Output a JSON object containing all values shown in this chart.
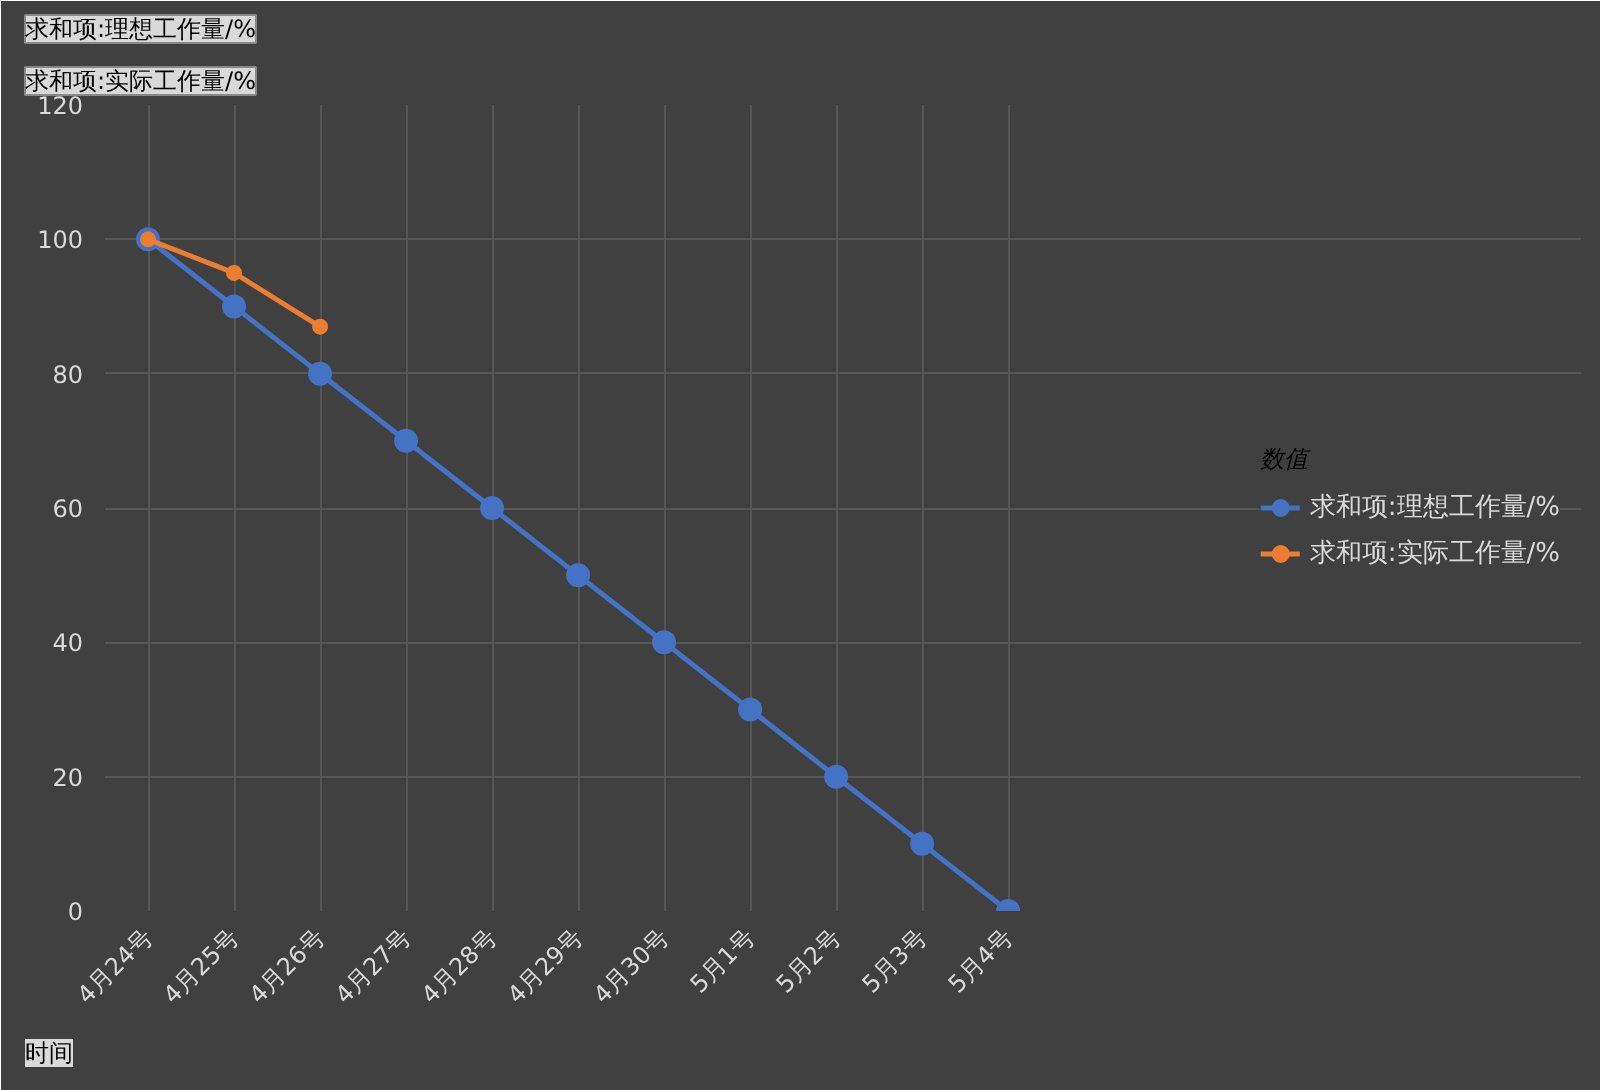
{
  "chart_data": {
    "type": "line",
    "categories": [
      "4月24号",
      "4月25号",
      "4月26号",
      "4月27号",
      "4月28号",
      "4月29号",
      "4月30号",
      "5月1号",
      "5月2号",
      "5月3号",
      "5月4号"
    ],
    "series": [
      {
        "name": "求和项:理想工作量/%",
        "color": "#4472c4",
        "values": [
          100,
          90,
          80,
          70,
          60,
          50,
          40,
          30,
          20,
          10,
          0
        ]
      },
      {
        "name": "求和项:实际工作量/%",
        "color": "#ed7d31",
        "values": [
          100,
          95,
          87,
          null,
          null,
          null,
          null,
          null,
          null,
          null,
          null
        ]
      }
    ],
    "ylim": [
      0,
      120
    ],
    "yticks": [
      0,
      20,
      40,
      60,
      80,
      100,
      120
    ],
    "grid": true,
    "legend": "right",
    "legend_title": "数值",
    "marker": "circle",
    "xlabel": "时间",
    "annotations": [
      "求和项:理想工作量/%",
      "求和项:实际工作量/%"
    ]
  }
}
